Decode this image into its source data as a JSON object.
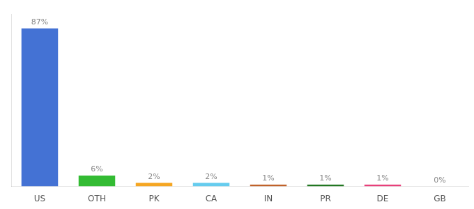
{
  "chart_data": {
    "type": "bar",
    "categories": [
      "US",
      "OTH",
      "PK",
      "CA",
      "IN",
      "PR",
      "DE",
      "GB"
    ],
    "values": [
      87,
      6,
      2,
      2,
      1,
      1,
      1,
      0
    ],
    "value_labels": [
      "87%",
      "6%",
      "2%",
      "2%",
      "1%",
      "1%",
      "1%",
      "0%"
    ],
    "colors": [
      "#4472d4",
      "#33bb33",
      "#f5a623",
      "#66ccee",
      "#c0622a",
      "#227722",
      "#e8407a",
      "#8b4513"
    ],
    "ylim": [
      0,
      95
    ],
    "grid": false,
    "data_labels": true,
    "tick_labels": "x"
  }
}
